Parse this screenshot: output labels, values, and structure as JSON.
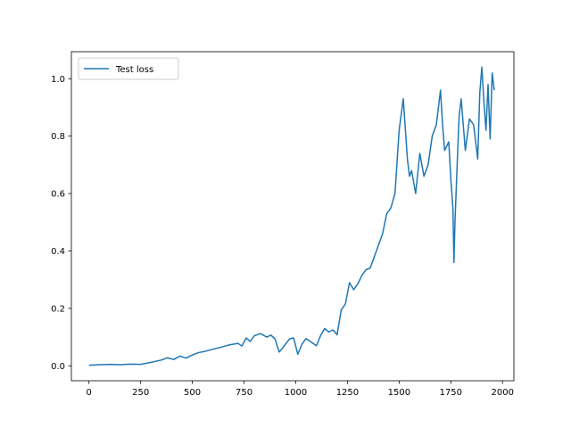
{
  "chart_data": {
    "type": "line",
    "title": "",
    "xlabel": "",
    "ylabel": "",
    "xlim": [
      -85,
      2055
    ],
    "ylim": [
      -0.052,
      1.094
    ],
    "xticks": [
      0,
      250,
      500,
      750,
      1000,
      1250,
      1500,
      1750,
      2000
    ],
    "xtick_labels": [
      "0",
      "250",
      "500",
      "750",
      "1000",
      "1250",
      "1500",
      "1750",
      "2000"
    ],
    "yticks": [
      0.0,
      0.2,
      0.4,
      0.6,
      0.8,
      1.0
    ],
    "ytick_labels": [
      "0.0",
      "0.2",
      "0.4",
      "0.6",
      "0.8",
      "1.0"
    ],
    "grid": false,
    "legend_position": "upper-left",
    "series": [
      {
        "name": "Test loss",
        "color": "#1f77b4",
        "x": [
          0,
          50,
          100,
          150,
          200,
          250,
          300,
          350,
          380,
          410,
          440,
          470,
          500,
          530,
          560,
          600,
          640,
          680,
          720,
          740,
          760,
          780,
          800,
          830,
          860,
          880,
          900,
          920,
          940,
          970,
          990,
          1010,
          1030,
          1050,
          1070,
          1100,
          1120,
          1140,
          1160,
          1180,
          1200,
          1220,
          1240,
          1260,
          1280,
          1300,
          1320,
          1340,
          1360,
          1380,
          1400,
          1420,
          1440,
          1460,
          1480,
          1500,
          1520,
          1540,
          1550,
          1560,
          1580,
          1600,
          1620,
          1640,
          1660,
          1680,
          1700,
          1710,
          1720,
          1740,
          1750,
          1760,
          1765,
          1770,
          1780,
          1790,
          1800,
          1820,
          1840,
          1860,
          1880,
          1890,
          1900,
          1910,
          1920,
          1930,
          1940,
          1950,
          1960
        ],
        "y": [
          0.002,
          0.004,
          0.005,
          0.004,
          0.006,
          0.005,
          0.012,
          0.02,
          0.028,
          0.022,
          0.034,
          0.027,
          0.038,
          0.046,
          0.05,
          0.058,
          0.065,
          0.073,
          0.078,
          0.069,
          0.097,
          0.085,
          0.105,
          0.112,
          0.1,
          0.107,
          0.093,
          0.048,
          0.065,
          0.094,
          0.097,
          0.04,
          0.075,
          0.095,
          0.085,
          0.07,
          0.105,
          0.13,
          0.118,
          0.125,
          0.108,
          0.195,
          0.215,
          0.29,
          0.265,
          0.285,
          0.315,
          0.335,
          0.34,
          0.38,
          0.42,
          0.46,
          0.53,
          0.55,
          0.6,
          0.82,
          0.93,
          0.72,
          0.66,
          0.68,
          0.6,
          0.74,
          0.66,
          0.7,
          0.8,
          0.84,
          0.96,
          0.84,
          0.75,
          0.78,
          0.65,
          0.55,
          0.36,
          0.5,
          0.69,
          0.87,
          0.93,
          0.75,
          0.86,
          0.84,
          0.72,
          0.95,
          1.04,
          0.92,
          0.82,
          0.98,
          0.79,
          1.02,
          0.96
        ]
      }
    ]
  }
}
